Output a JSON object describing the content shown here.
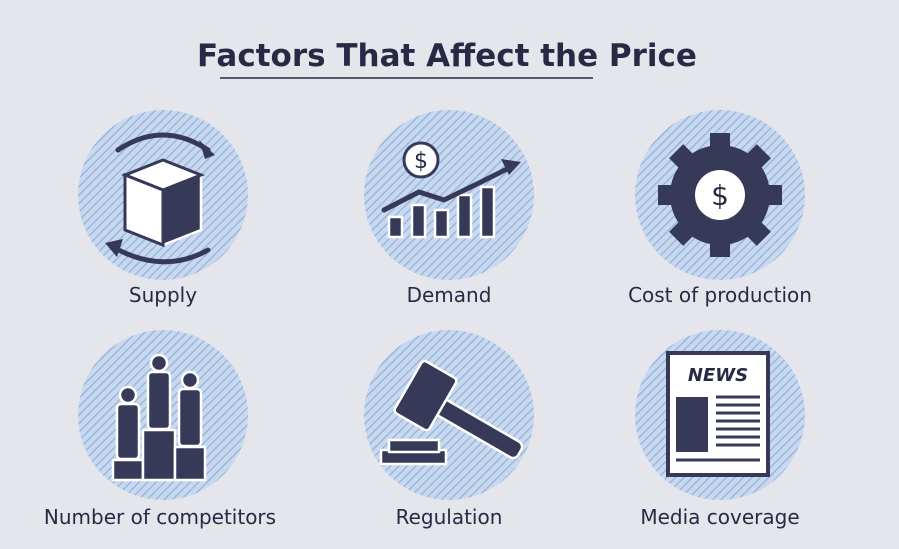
{
  "header": {
    "title": "Factors That Affect the Price"
  },
  "factors": [
    {
      "label": "Supply"
    },
    {
      "label": "Demand",
      "icon_text": "$"
    },
    {
      "label": "Cost of production",
      "icon_text": "$"
    },
    {
      "label": "Number of competitors"
    },
    {
      "label": "Regulation"
    },
    {
      "label": "Media coverage",
      "icon_text": "NEWS"
    }
  ]
}
